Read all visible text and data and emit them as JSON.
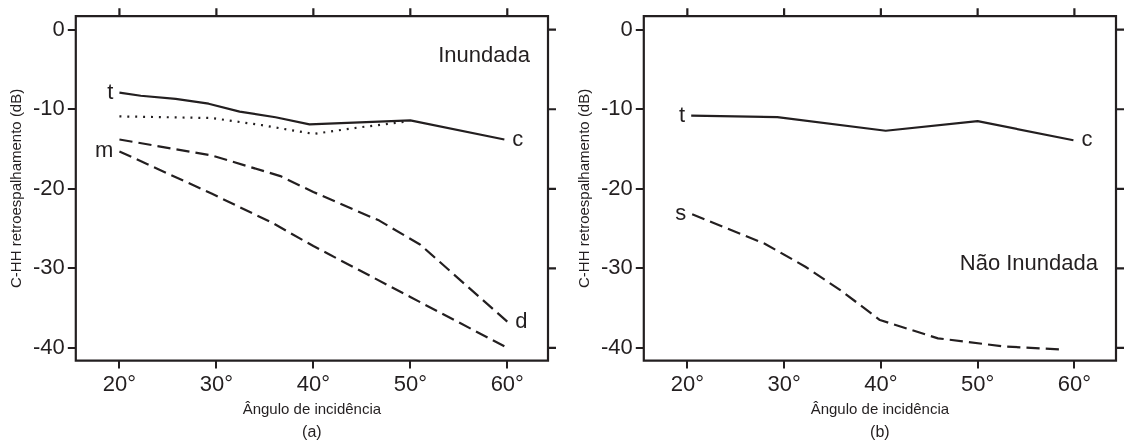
{
  "chart_data": [
    {
      "type": "line",
      "xlabel": "Ângulo de incidência",
      "ylabel": "C-HH retroespalhamento (dB)",
      "xlim": [
        15.5,
        64.2
      ],
      "ylim": [
        -41.6,
        1.7
      ],
      "xticks": [
        {
          "value": 20,
          "label": "20°"
        },
        {
          "value": 30,
          "label": "30°"
        },
        {
          "value": 40,
          "label": "40°"
        },
        {
          "value": 50,
          "label": "50°"
        },
        {
          "value": 60,
          "label": "60°"
        }
      ],
      "yticks": [
        0,
        -10,
        -20,
        -30,
        -40
      ],
      "grid": false,
      "legend": false,
      "marker": "none",
      "annotations": [
        "Inundada",
        "(a)",
        {
          "text": "t",
          "x": 20,
          "y": -7.9
        },
        {
          "text": "m",
          "x": 20,
          "y": -15.3
        },
        {
          "text": "c",
          "x": 59.7,
          "y": -13.8
        },
        {
          "text": "d",
          "x": 60,
          "y": -36.7
        }
      ],
      "series": [
        {
          "color": "#231f20",
          "line_style": "solid",
          "x": [
            20,
            22.2,
            25.8,
            29.2,
            32.4,
            36.1,
            39.6,
            50,
            59.7
          ],
          "values": [
            -7.9,
            -8.3,
            -8.7,
            -9.3,
            -10.3,
            -11,
            -11.9,
            -11.4,
            -13.8
          ]
        },
        {
          "color": "#231f20",
          "line_style": "dotted",
          "x": [
            20,
            29.5,
            34.7,
            40,
            44.6,
            49.3
          ],
          "values": [
            -10.9,
            -11.1,
            -12,
            -13.1,
            -12.3,
            -11.6
          ]
        },
        {
          "color": "#231f20",
          "line_style": "dashed",
          "x": [
            20,
            29.5,
            36.6,
            40,
            46.8,
            51,
            60
          ],
          "values": [
            -13.8,
            -15.8,
            -18.4,
            -20.4,
            -24,
            -27,
            -36.7
          ]
        },
        {
          "color": "#231f20",
          "line_style": "dashed",
          "x": [
            20,
            29.5,
            35.8,
            40,
            50,
            59.7
          ],
          "values": [
            -15.3,
            -20.6,
            -24.3,
            -27.2,
            -33.6,
            -39.8
          ]
        }
      ]
    },
    {
      "type": "line",
      "xlabel": "Ângulo de incidência",
      "ylabel": "C-HH retroespalhamento (dB)",
      "xlim": [
        15.5,
        64.3
      ],
      "ylim": [
        -41.6,
        1.7
      ],
      "xticks": [
        {
          "value": 20,
          "label": "20°"
        },
        {
          "value": 30,
          "label": "30°"
        },
        {
          "value": 40,
          "label": "40°"
        },
        {
          "value": 50,
          "label": "50°"
        },
        {
          "value": 60,
          "label": "60°"
        }
      ],
      "yticks": [
        0,
        -10,
        -20,
        -30,
        -40
      ],
      "grid": false,
      "legend": false,
      "marker": "none",
      "annotations": [
        "Não Inundada",
        "(b)",
        {
          "text": "t",
          "x": 20.4,
          "y": -10.8
        },
        {
          "text": "c",
          "x": 59.9,
          "y": -13.9
        },
        {
          "text": "s",
          "x": 20.5,
          "y": -23.2
        }
      ],
      "series": [
        {
          "color": "#231f20",
          "line_style": "solid",
          "x": [
            20.4,
            29.3,
            40.5,
            50,
            59.9
          ],
          "values": [
            -10.8,
            -11,
            -12.7,
            -11.5,
            -13.9
          ]
        },
        {
          "color": "#231f20",
          "line_style": "dashed",
          "x": [
            20.5,
            28,
            32.2,
            36,
            39.9,
            45.9,
            52.6,
            58.4
          ],
          "values": [
            -23.2,
            -26.9,
            -29.8,
            -32.9,
            -36.5,
            -38.8,
            -39.8,
            -40.2
          ]
        }
      ]
    }
  ]
}
